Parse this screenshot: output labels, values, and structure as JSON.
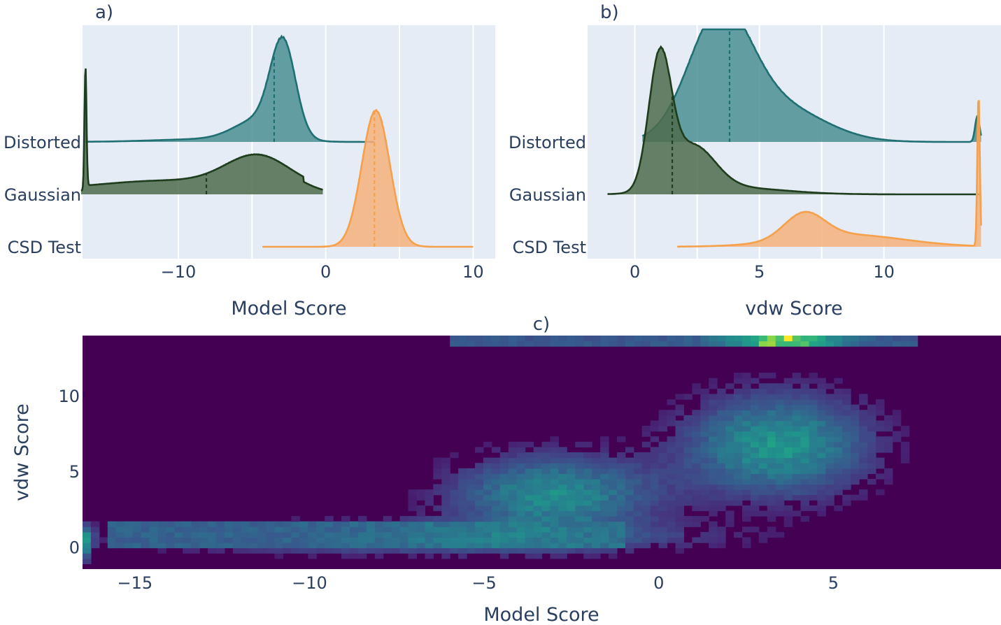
{
  "colors": {
    "distorted": "#1f6f73",
    "distorted_fill": "#4a8f92",
    "gaussian": "#1e3d1c",
    "gaussian_fill": "#4f6c4c",
    "csd": "#f5a04a",
    "csd_fill": "#f6b27a",
    "plot_bg": "#e5ecf6"
  },
  "chart_data": [
    {
      "id": "a",
      "type": "ridgeline",
      "panel_label": "a)",
      "xlabel": "Model Score",
      "xlim": [
        -16.5,
        11.5
      ],
      "xticks": [
        -10,
        0,
        10
      ],
      "xtick_labels": [
        "−10",
        "0",
        "10"
      ],
      "categories": [
        "Distorted",
        "Gaussian",
        "CSD Test"
      ],
      "series": [
        {
          "name": "Distorted",
          "color_key": "distorted",
          "median": -3.5,
          "range": [
            -16.3,
            3.3
          ],
          "shape": [
            {
              "kind": "gauss",
              "mu": -2.9,
              "sigma": 0.85,
              "w": 1.0
            },
            {
              "kind": "gauss",
              "mu": -4.6,
              "sigma": 1.6,
              "w": 0.22
            },
            {
              "kind": "gauss",
              "mu": -8,
              "sigma": 3.5,
              "w": 0.03
            }
          ],
          "height": 1.0
        },
        {
          "name": "Gaussian",
          "color_key": "gaussian",
          "median": -8.1,
          "range": [
            -16.6,
            -0.2
          ],
          "shape": [
            {
              "kind": "gauss",
              "mu": -16.3,
              "sigma": 0.07,
              "w": 1.0
            },
            {
              "kind": "gauss",
              "mu": -4.6,
              "sigma": 2.2,
              "w": 0.26
            },
            {
              "kind": "gauss",
              "mu": -11,
              "sigma": 4.2,
              "w": 0.07
            },
            {
              "kind": "flat",
              "from": -16.2,
              "to": -1.5,
              "w": 0.04
            }
          ],
          "height": 1.2
        },
        {
          "name": "CSD Test",
          "color_key": "csd",
          "median": 3.3,
          "range": [
            -4.3,
            10.0
          ],
          "shape": [
            {
              "kind": "gauss",
              "mu": 3.4,
              "sigma": 0.95,
              "w": 1.0
            }
          ],
          "height": 1.3
        }
      ]
    },
    {
      "id": "b",
      "type": "ridgeline",
      "panel_label": "b)",
      "xlabel": "vdw Score",
      "xlim": [
        -1.9,
        14.7
      ],
      "xticks": [
        0,
        5,
        10
      ],
      "xtick_labels": [
        "0",
        "5",
        "10"
      ],
      "categories": [
        "Distorted",
        "Gaussian",
        "CSD Test"
      ],
      "series": [
        {
          "name": "Distorted",
          "color_key": "distorted",
          "median": 3.8,
          "range": [
            0.3,
            13.9
          ],
          "shape": [
            {
              "kind": "gauss",
              "mu": 3.4,
              "sigma": 1.25,
              "w": 1.0
            },
            {
              "kind": "gauss",
              "mu": 5.8,
              "sigma": 1.8,
              "w": 0.28
            },
            {
              "kind": "gauss",
              "mu": 13.75,
              "sigma": 0.09,
              "w": 0.21
            }
          ],
          "height": 1.3
        },
        {
          "name": "Gaussian",
          "color_key": "gaussian",
          "median": 1.5,
          "range": [
            -1.1,
            13.9
          ],
          "shape": [
            {
              "kind": "gauss",
              "mu": 1.0,
              "sigma": 0.45,
              "w": 1.0
            },
            {
              "kind": "gauss",
              "mu": 2.3,
              "sigma": 0.9,
              "w": 0.35
            },
            {
              "kind": "gauss",
              "mu": 4,
              "sigma": 2,
              "w": 0.05
            }
          ],
          "height": 1.4
        },
        {
          "name": "CSD Test",
          "color_key": "csd",
          "median": null,
          "range": [
            1.7,
            13.9
          ],
          "shape": [
            {
              "kind": "gauss",
              "mu": 6.8,
              "sigma": 0.8,
              "w": 0.17
            },
            {
              "kind": "gauss",
              "mu": 8.5,
              "sigma": 2.3,
              "w": 0.08
            },
            {
              "kind": "gauss",
              "mu": 13.8,
              "sigma": 0.05,
              "w": 1.0
            }
          ],
          "height": 1.4
        }
      ]
    },
    {
      "id": "c",
      "type": "heatmap",
      "panel_label": "c)",
      "xlabel": "Model Score",
      "ylabel": "vdw Score",
      "xlim": [
        -16.5,
        9.8
      ],
      "ylim": [
        -1.4,
        14.0
      ],
      "xticks": [
        -15,
        -10,
        -5,
        0,
        5
      ],
      "xtick_labels": [
        "−15",
        "−10",
        "−5",
        "0",
        "5"
      ],
      "yticks": [
        0,
        5,
        10
      ],
      "ytick_labels": [
        "0",
        "5",
        "10"
      ],
      "colorscale": "viridis",
      "clusters": [
        {
          "name": "csd test",
          "cx": 3.4,
          "cy": 6.8,
          "sx": 1.8,
          "sy": 2.3,
          "w": 0.6
        },
        {
          "name": "distorted",
          "cx": -3.0,
          "cy": 3.5,
          "sx": 2.0,
          "sy": 1.8,
          "w": 0.55
        },
        {
          "name": "gaussian band",
          "cx": -7.0,
          "cy": 0.7,
          "sx": 5.0,
          "sy": 0.7,
          "w": 0.42
        },
        {
          "name": "top ridge",
          "cx": 3.6,
          "cy": 13.8,
          "sx": 1.2,
          "sy": 0.2,
          "w": 0.95
        },
        {
          "name": "left edge",
          "cx": -16.3,
          "cy": 0.4,
          "sx": 0.08,
          "sy": 0.8,
          "w": 0.9
        }
      ]
    }
  ]
}
